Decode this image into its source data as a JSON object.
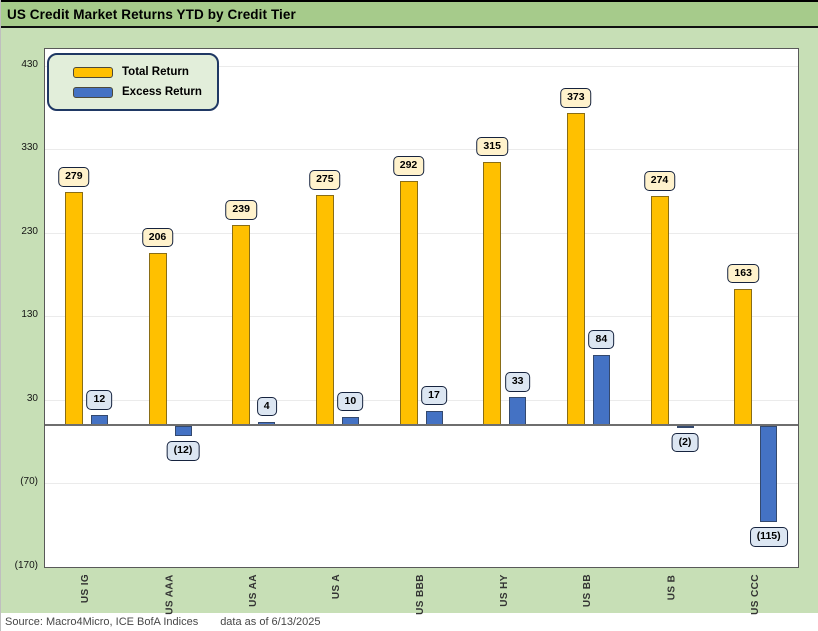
{
  "title": "US Credit Market Returns YTD by Credit Tier",
  "footer": {
    "source": "Source: Macro4Micro, ICE BofA Indices",
    "as_of": "data as of 6/13/2025"
  },
  "colors": {
    "title_band": "#A6CB8B",
    "chart_background": "#C7DFB6",
    "plot_background": "#FFFFFF",
    "total_return_gold": "#FFC000",
    "excess_return_blue": "#4472C4",
    "gold_label_bg": "#FFF2CC",
    "blue_label_bg": "#DCE6F2",
    "legend_bg": "#E2EEDA",
    "legend_border": "#1F3864",
    "axis_line": "#6E6E6E",
    "gridline": "#EBEBEB"
  },
  "chart_data": {
    "type": "bar",
    "title": "US Credit Market Returns YTD by Credit Tier",
    "categories": [
      "US IG",
      "US AAA",
      "US AA",
      "US A",
      "US BBB",
      "US HY",
      "US BB",
      "US B",
      "US CCC"
    ],
    "series": [
      {
        "name": "Total Return",
        "color": "#FFC000",
        "label_bg": "#FFF2CC",
        "values": [
          279,
          206,
          239,
          275,
          292,
          315,
          373,
          274,
          163
        ]
      },
      {
        "name": "Excess Return",
        "color": "#4472C4",
        "label_bg": "#DCE6F2",
        "values": [
          12,
          -12,
          4,
          10,
          17,
          33,
          84,
          -2,
          -115
        ]
      }
    ],
    "y_ticks": [
      430,
      330,
      230,
      130,
      30,
      -70,
      -170
    ],
    "y_top": 450,
    "y_bottom": -170,
    "negative_format": "parentheses",
    "grid": true,
    "data_labels": true,
    "legend_position": "top-left",
    "xlabel": "",
    "ylabel": ""
  }
}
